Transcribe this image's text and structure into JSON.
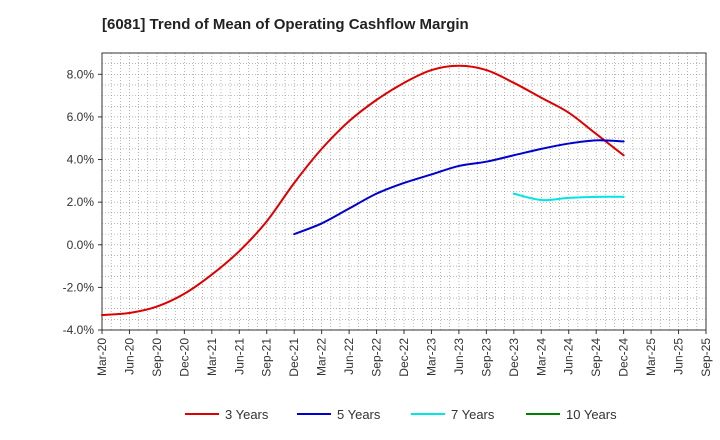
{
  "chart_data": {
    "type": "line",
    "title": "[6081]  Trend of Mean of Operating Cashflow Margin",
    "xlabel": "",
    "ylabel": "",
    "categories": [
      "Mar-20",
      "Jun-20",
      "Sep-20",
      "Dec-20",
      "Mar-21",
      "Jun-21",
      "Sep-21",
      "Dec-21",
      "Mar-22",
      "Jun-22",
      "Sep-22",
      "Dec-22",
      "Mar-23",
      "Jun-23",
      "Sep-23",
      "Dec-23",
      "Mar-24",
      "Jun-24",
      "Sep-24",
      "Dec-24",
      "Mar-25",
      "Jun-25",
      "Sep-25"
    ],
    "y_ticks": [
      "-4.0%",
      "-2.0%",
      "0.0%",
      "2.0%",
      "4.0%",
      "6.0%",
      "8.0%"
    ],
    "ylim": [
      -4.0,
      9.0
    ],
    "grid": true,
    "legend_position": "bottom",
    "series": [
      {
        "name": "3 Years",
        "color": "#dd0000",
        "values": [
          -3.3,
          -3.2,
          -2.9,
          -2.3,
          -1.4,
          -0.3,
          1.1,
          2.9,
          4.5,
          5.8,
          6.8,
          7.6,
          8.2,
          8.4,
          8.2,
          7.6,
          6.9,
          6.2,
          5.2,
          4.2,
          null,
          null,
          null
        ]
      },
      {
        "name": "5 Years",
        "color": "#0000cc",
        "values": [
          null,
          null,
          null,
          null,
          null,
          null,
          null,
          0.5,
          1.0,
          1.7,
          2.4,
          2.9,
          3.3,
          3.7,
          3.9,
          4.2,
          4.5,
          4.75,
          4.9,
          4.85,
          null,
          null,
          null
        ]
      },
      {
        "name": "7 Years",
        "color": "#00e5e5",
        "values": [
          null,
          null,
          null,
          null,
          null,
          null,
          null,
          null,
          null,
          null,
          null,
          null,
          null,
          null,
          null,
          2.4,
          2.1,
          2.2,
          2.25,
          2.25,
          null,
          null,
          null
        ]
      },
      {
        "name": "10 Years",
        "color": "#008000",
        "values": [
          null,
          null,
          null,
          null,
          null,
          null,
          null,
          null,
          null,
          null,
          null,
          null,
          null,
          null,
          null,
          null,
          null,
          null,
          null,
          null,
          null,
          null,
          null
        ]
      }
    ]
  }
}
